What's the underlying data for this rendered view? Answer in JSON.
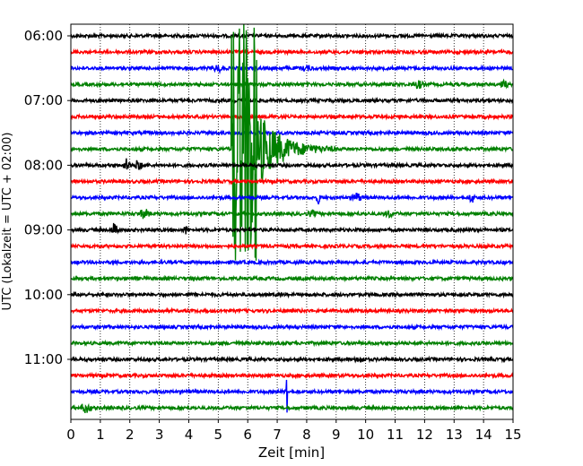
{
  "chart_data": {
    "type": "line",
    "title": "",
    "xlabel": "Zeit  [min]",
    "ylabel": "UTC (Lokalzeit = UTC + 02:00)",
    "xlim": [
      0,
      15
    ],
    "x_ticks": [
      "0",
      "1",
      "2",
      "3",
      "4",
      "5",
      "6",
      "7",
      "8",
      "9",
      "10",
      "11",
      "12",
      "13",
      "14",
      "15"
    ],
    "y_ticks": [
      "06:00",
      "07:00",
      "08:00",
      "09:00",
      "10:00",
      "11:00"
    ],
    "grid": "vertical dotted",
    "trace_colors": [
      "#000000",
      "#ff0000",
      "#0000ff",
      "#008000"
    ],
    "traces": [
      {
        "start": "06:00",
        "color": "#000000"
      },
      {
        "start": "06:15",
        "color": "#ff0000"
      },
      {
        "start": "06:30",
        "color": "#0000ff"
      },
      {
        "start": "06:45",
        "color": "#008000"
      },
      {
        "start": "07:00",
        "color": "#000000"
      },
      {
        "start": "07:15",
        "color": "#ff0000"
      },
      {
        "start": "07:30",
        "color": "#0000ff"
      },
      {
        "start": "07:45",
        "color": "#008000"
      },
      {
        "start": "08:00",
        "color": "#000000"
      },
      {
        "start": "08:15",
        "color": "#ff0000"
      },
      {
        "start": "08:30",
        "color": "#0000ff"
      },
      {
        "start": "08:45",
        "color": "#008000"
      },
      {
        "start": "09:00",
        "color": "#000000"
      },
      {
        "start": "09:15",
        "color": "#ff0000"
      },
      {
        "start": "09:30",
        "color": "#0000ff"
      },
      {
        "start": "09:45",
        "color": "#008000"
      },
      {
        "start": "10:00",
        "color": "#000000"
      },
      {
        "start": "10:15",
        "color": "#ff0000"
      },
      {
        "start": "10:30",
        "color": "#0000ff"
      },
      {
        "start": "10:45",
        "color": "#008000"
      },
      {
        "start": "11:00",
        "color": "#000000"
      },
      {
        "start": "11:15",
        "color": "#ff0000"
      },
      {
        "start": "11:30",
        "color": "#0000ff"
      },
      {
        "start": "11:45",
        "color": "#008000"
      }
    ],
    "events": [
      {
        "trace_start": "07:45",
        "time_min": 5.5,
        "type": "earthquake"
      },
      {
        "trace_start": "11:30",
        "time_min": 7.3,
        "type": "spike"
      }
    ]
  }
}
